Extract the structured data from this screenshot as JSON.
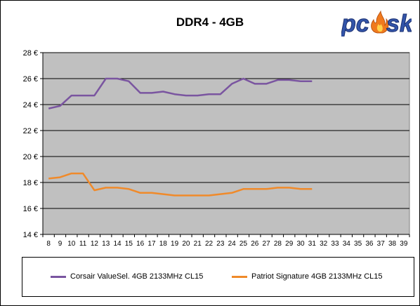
{
  "logo": {
    "text": "pc",
    "text2": "sk",
    "icon": "flame-icon",
    "colors": {
      "blue": "#3355aa",
      "flame": "#f07a1e"
    }
  },
  "chart_data": {
    "type": "line",
    "title": "DDR4 - 4GB",
    "xlabel": "",
    "ylabel": "",
    "x": [
      8,
      9,
      10,
      11,
      12,
      13,
      14,
      15,
      16,
      17,
      18,
      19,
      20,
      21,
      22,
      23,
      24,
      25,
      26,
      27,
      28,
      29,
      30,
      31,
      32,
      33,
      34,
      35,
      36,
      37,
      38,
      39
    ],
    "xlim": [
      8,
      39
    ],
    "ylim": [
      14,
      28
    ],
    "yticks": [
      14,
      16,
      18,
      20,
      22,
      24,
      26,
      28
    ],
    "ytick_labels": [
      "14 €",
      "16 €",
      "18 €",
      "20 €",
      "22 €",
      "24 €",
      "26 €",
      "28 €"
    ],
    "grid": true,
    "legend": "bottom",
    "plot_background": "#c0c0c0",
    "series": [
      {
        "name": "Corsair ValueSel. 4GB 2133MHz CL15",
        "color": "#7a55a0",
        "x": [
          8,
          9,
          10,
          11,
          12,
          13,
          14,
          15,
          16,
          17,
          18,
          19,
          20,
          21,
          22,
          23,
          24,
          25,
          26,
          27,
          28,
          29,
          30,
          31
        ],
        "values": [
          23.7,
          23.9,
          24.7,
          24.7,
          24.7,
          26.0,
          26.0,
          25.8,
          24.9,
          24.9,
          25.0,
          24.8,
          24.7,
          24.7,
          24.8,
          24.8,
          25.6,
          26.0,
          25.6,
          25.6,
          25.9,
          25.9,
          25.8,
          25.8
        ]
      },
      {
        "name": "Patriot Signature 4GB 2133MHz CL15",
        "color": "#f08a2a",
        "x": [
          8,
          9,
          10,
          11,
          12,
          13,
          14,
          15,
          16,
          17,
          18,
          19,
          20,
          21,
          22,
          23,
          24,
          25,
          26,
          27,
          28,
          29,
          30,
          31
        ],
        "values": [
          18.3,
          18.4,
          18.7,
          18.7,
          17.4,
          17.6,
          17.6,
          17.5,
          17.2,
          17.2,
          17.1,
          17.0,
          17.0,
          17.0,
          17.0,
          17.1,
          17.2,
          17.5,
          17.5,
          17.5,
          17.6,
          17.6,
          17.5,
          17.5
        ]
      }
    ]
  }
}
